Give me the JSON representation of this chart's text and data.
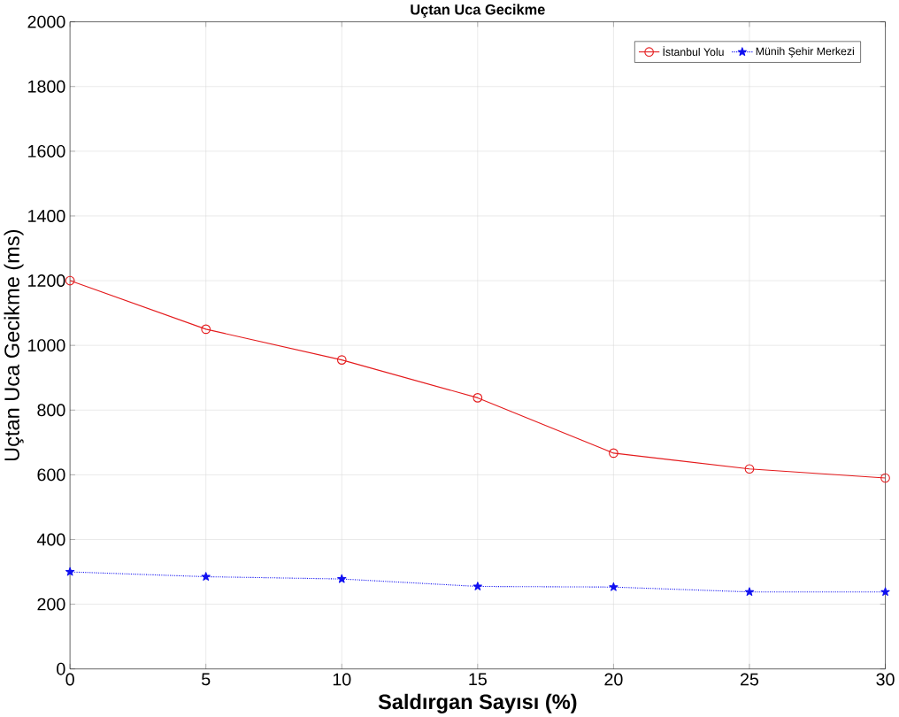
{
  "chart_data": {
    "type": "line",
    "title": "Uçtan Uca Gecikme",
    "xlabel": "Saldırgan Sayısı (%)",
    "ylabel": "Uçtan Uca Gecikme (ms)",
    "x": [
      0,
      5,
      10,
      15,
      20,
      25,
      30
    ],
    "series": [
      {
        "name": "İstanbul Yolu",
        "color": "#e41a1c",
        "values": [
          1200,
          1050,
          955,
          838,
          667,
          618,
          590
        ],
        "marker": "circle",
        "line_style": "solid"
      },
      {
        "name": "Münih Şehir Merkezi",
        "color": "#1010f0",
        "values": [
          300,
          285,
          278,
          255,
          253,
          238,
          238
        ],
        "marker": "star",
        "line_style": "dotted"
      }
    ],
    "xlim": [
      0,
      30
    ],
    "xticks": [
      0,
      5,
      10,
      15,
      20,
      25,
      30
    ],
    "ylim": [
      0,
      2000
    ],
    "yticks": [
      0,
      200,
      400,
      600,
      800,
      1000,
      1200,
      1400,
      1600,
      1800,
      2000
    ],
    "grid": true,
    "legend": "top right"
  }
}
